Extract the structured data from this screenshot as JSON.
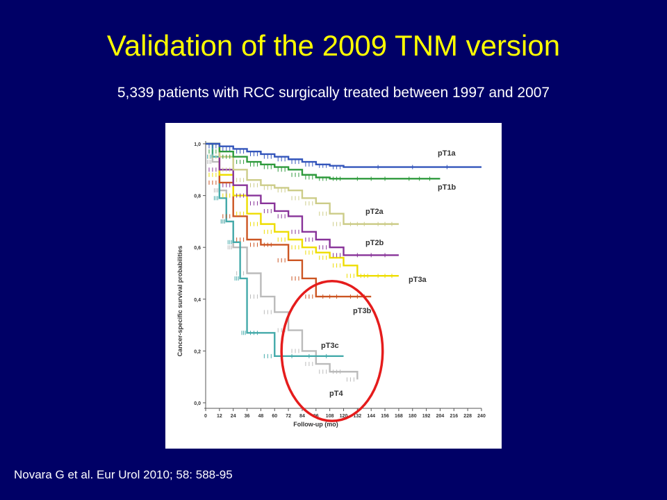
{
  "slide": {
    "title": "Validation of the 2009 TNM version",
    "subtitle": "5,339 patients with RCC surgically treated between 1997 and 2007",
    "citation": "Novara G et al. Eur Urol 2010; 58: 588-95"
  },
  "colors": {
    "background": "#000066",
    "title": "#ffff00",
    "text": "#ffffff",
    "highlight_circle": "#e51c1c"
  },
  "chart_data": {
    "type": "line",
    "step": true,
    "xlabel": "Follow-up (mo)",
    "ylabel": "Cancer-specific survival probabilities",
    "xlim": [
      0,
      240
    ],
    "ylim": [
      0,
      1
    ],
    "x_ticks": [
      0,
      12,
      24,
      36,
      48,
      60,
      72,
      84,
      96,
      108,
      120,
      132,
      144,
      156,
      168,
      180,
      192,
      204,
      216,
      228,
      240
    ],
    "y_ticks": [
      {
        "value": 0.0,
        "label": "0,0"
      },
      {
        "value": 0.2,
        "label": "0,2"
      },
      {
        "value": 0.4,
        "label": "0,4"
      },
      {
        "value": 0.6,
        "label": "0,6"
      },
      {
        "value": 0.8,
        "label": "0,8"
      },
      {
        "value": 1.0,
        "label": "1,0"
      }
    ],
    "highlight": {
      "shape": "circle",
      "x_center": 110,
      "y_center": 0.2,
      "x_radius": 44,
      "y_radius": 0.27
    },
    "series": [
      {
        "name": "pT1a",
        "color": "#3355bb",
        "points": [
          [
            0,
            1.0
          ],
          [
            12,
            0.99
          ],
          [
            24,
            0.98
          ],
          [
            36,
            0.97
          ],
          [
            48,
            0.96
          ],
          [
            60,
            0.95
          ],
          [
            72,
            0.94
          ],
          [
            84,
            0.93
          ],
          [
            96,
            0.92
          ],
          [
            108,
            0.915
          ],
          [
            120,
            0.91
          ],
          [
            240,
            0.91
          ]
        ]
      },
      {
        "name": "pT1b",
        "color": "#2e9a3c",
        "points": [
          [
            0,
            1.0
          ],
          [
            12,
            0.97
          ],
          [
            24,
            0.95
          ],
          [
            36,
            0.93
          ],
          [
            48,
            0.92
          ],
          [
            60,
            0.91
          ],
          [
            72,
            0.9
          ],
          [
            84,
            0.88
          ],
          [
            96,
            0.87
          ],
          [
            108,
            0.865
          ],
          [
            120,
            0.865
          ],
          [
            168,
            0.865
          ],
          [
            204,
            0.865
          ]
        ]
      },
      {
        "name": "pT2a",
        "color": "#cccc88",
        "points": [
          [
            0,
            1.0
          ],
          [
            12,
            0.95
          ],
          [
            24,
            0.9
          ],
          [
            36,
            0.86
          ],
          [
            48,
            0.84
          ],
          [
            60,
            0.83
          ],
          [
            72,
            0.82
          ],
          [
            84,
            0.79
          ],
          [
            96,
            0.77
          ],
          [
            108,
            0.73
          ],
          [
            120,
            0.69
          ],
          [
            144,
            0.69
          ],
          [
            168,
            0.69
          ]
        ]
      },
      {
        "name": "pT2b",
        "color": "#883399",
        "points": [
          [
            0,
            1.0
          ],
          [
            12,
            0.9
          ],
          [
            24,
            0.84
          ],
          [
            36,
            0.8
          ],
          [
            48,
            0.77
          ],
          [
            60,
            0.74
          ],
          [
            72,
            0.72
          ],
          [
            84,
            0.66
          ],
          [
            96,
            0.63
          ],
          [
            108,
            0.6
          ],
          [
            120,
            0.57
          ],
          [
            168,
            0.57
          ]
        ]
      },
      {
        "name": "pT3a",
        "color": "#eedd00",
        "points": [
          [
            0,
            1.0
          ],
          [
            12,
            0.88
          ],
          [
            24,
            0.8
          ],
          [
            36,
            0.73
          ],
          [
            48,
            0.69
          ],
          [
            60,
            0.66
          ],
          [
            72,
            0.63
          ],
          [
            84,
            0.6
          ],
          [
            96,
            0.58
          ],
          [
            108,
            0.56
          ],
          [
            120,
            0.53
          ],
          [
            132,
            0.49
          ],
          [
            144,
            0.49
          ],
          [
            168,
            0.49
          ]
        ]
      },
      {
        "name": "pT3b",
        "color": "#cc5522",
        "points": [
          [
            0,
            1.0
          ],
          [
            12,
            0.85
          ],
          [
            24,
            0.72
          ],
          [
            36,
            0.63
          ],
          [
            48,
            0.61
          ],
          [
            60,
            0.61
          ],
          [
            72,
            0.55
          ],
          [
            84,
            0.48
          ],
          [
            96,
            0.41
          ],
          [
            120,
            0.41
          ],
          [
            144,
            0.41
          ]
        ]
      },
      {
        "name": "pT3c",
        "color": "#44aaaa",
        "points": [
          [
            0,
            1.0
          ],
          [
            6,
            0.95
          ],
          [
            12,
            0.79
          ],
          [
            18,
            0.7
          ],
          [
            24,
            0.62
          ],
          [
            30,
            0.48
          ],
          [
            36,
            0.27
          ],
          [
            48,
            0.27
          ],
          [
            60,
            0.18
          ],
          [
            120,
            0.18
          ]
        ]
      },
      {
        "name": "pT4",
        "color": "#bbbbbb",
        "points": [
          [
            0,
            1.0
          ],
          [
            6,
            0.93
          ],
          [
            12,
            0.82
          ],
          [
            18,
            0.7
          ],
          [
            24,
            0.6
          ],
          [
            36,
            0.5
          ],
          [
            48,
            0.41
          ],
          [
            60,
            0.35
          ],
          [
            72,
            0.28
          ],
          [
            84,
            0.2
          ],
          [
            96,
            0.15
          ],
          [
            108,
            0.12
          ],
          [
            120,
            0.12
          ],
          [
            132,
            0.09
          ]
        ]
      }
    ]
  }
}
